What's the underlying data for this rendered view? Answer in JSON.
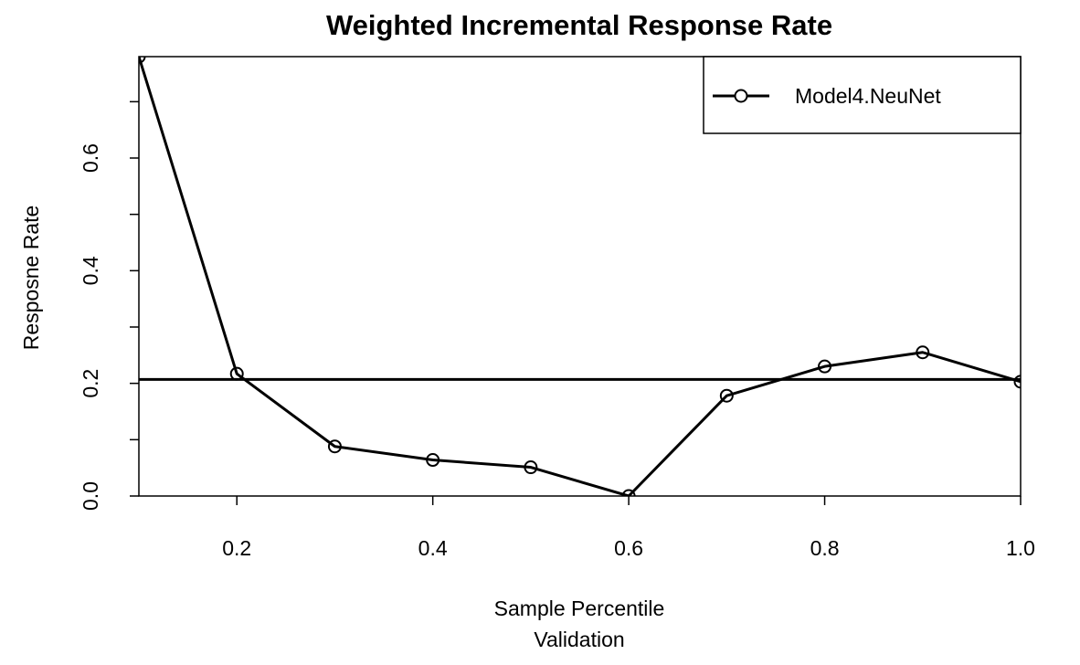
{
  "chart_data": {
    "type": "line",
    "title": "Weighted Incremental Response Rate",
    "xlabel": "Sample Percentile",
    "xlabel_sub": "Validation",
    "ylabel": "Resposne Rate",
    "xlim": [
      0.1,
      1.0
    ],
    "ylim": [
      0.0,
      0.78
    ],
    "xticks": [
      0.2,
      0.4,
      0.6,
      0.8,
      1.0
    ],
    "xtick_labels": [
      "0.2",
      "0.4",
      "0.6",
      "0.8",
      "1.0"
    ],
    "yticks": [
      0.0,
      0.1,
      0.2,
      0.3,
      0.4,
      0.5,
      0.6,
      0.7
    ],
    "ytick_labels": [
      "0.0",
      "",
      "0.2",
      "",
      "0.4",
      "",
      "0.6",
      ""
    ],
    "grid": false,
    "legend": {
      "position": "top-right",
      "entries": [
        "Model4.NeuNet"
      ]
    },
    "series": [
      {
        "name": "Model4.NeuNet",
        "color": "#000000",
        "marker": "open-circle",
        "x": [
          0.1,
          0.2,
          0.3,
          0.4,
          0.5,
          0.6,
          0.7,
          0.8,
          0.9,
          1.0
        ],
        "y": [
          0.78,
          0.217,
          0.088,
          0.064,
          0.051,
          0.0,
          0.178,
          0.23,
          0.255,
          0.203
        ]
      }
    ],
    "reference_line": {
      "type": "horizontal",
      "y": 0.207,
      "color": "#000000"
    }
  }
}
